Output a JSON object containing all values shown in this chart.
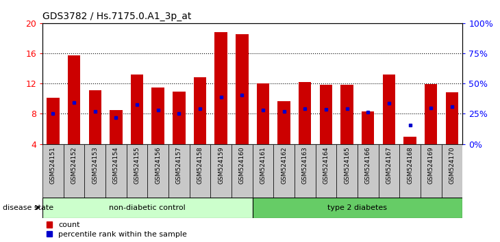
{
  "title": "GDS3782 / Hs.7175.0.A1_3p_at",
  "samples": [
    "GSM524151",
    "GSM524152",
    "GSM524153",
    "GSM524154",
    "GSM524155",
    "GSM524156",
    "GSM524157",
    "GSM524158",
    "GSM524159",
    "GSM524160",
    "GSM524161",
    "GSM524162",
    "GSM524163",
    "GSM524164",
    "GSM524165",
    "GSM524166",
    "GSM524167",
    "GSM524168",
    "GSM524169",
    "GSM524170"
  ],
  "counts": [
    10.1,
    15.7,
    11.1,
    8.5,
    13.2,
    11.5,
    10.9,
    12.8,
    18.8,
    18.5,
    12.0,
    9.7,
    12.2,
    11.8,
    11.8,
    8.3,
    13.2,
    5.0,
    11.9,
    10.8
  ],
  "percentile_ranks": [
    8.0,
    9.5,
    8.3,
    7.5,
    9.2,
    8.5,
    8.0,
    8.7,
    10.2,
    10.5,
    8.5,
    8.3,
    8.7,
    8.6,
    8.7,
    8.2,
    9.4,
    6.5,
    8.8,
    8.9
  ],
  "non_diabetic_count": 10,
  "ylim_left": [
    4,
    20
  ],
  "ylim_right": [
    0,
    100
  ],
  "yticks_left": [
    4,
    8,
    12,
    16,
    20
  ],
  "yticks_right": [
    0,
    25,
    50,
    75,
    100
  ],
  "grid_values": [
    8,
    12,
    16
  ],
  "bar_color": "#cc0000",
  "percentile_color": "#0000cc",
  "non_diabetic_bg": "#ccffcc",
  "diabetic_bg": "#66cc66",
  "tick_bg": "#c8c8c8",
  "legend_count_label": "count",
  "legend_percentile_label": "percentile rank within the sample",
  "group1_label": "non-diabetic control",
  "group2_label": "type 2 diabetes",
  "disease_state_label": "disease state"
}
